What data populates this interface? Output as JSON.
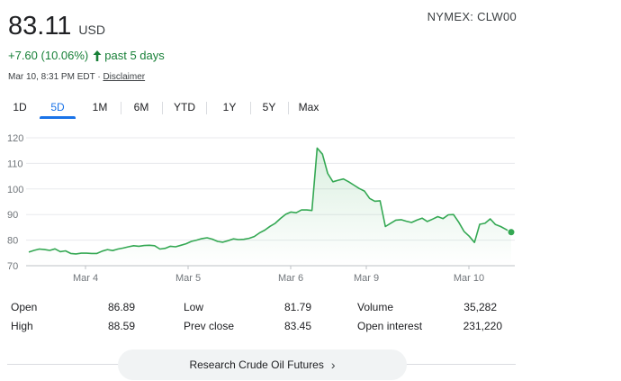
{
  "quote": {
    "price": "83.11",
    "currency": "USD",
    "ticker": "NYMEX: CLW00",
    "change": "+7.60 (10.06%)",
    "change_period": "past 5 days",
    "timestamp": "Mar 10, 8:31 PM EDT",
    "separator": "·",
    "disclaimer": "Disclaimer"
  },
  "colors": {
    "line": "#34a853",
    "positive_text": "#188038",
    "active_tab": "#1a73e8"
  },
  "tabs": [
    "1D",
    "5D",
    "1M",
    "6M",
    "YTD",
    "1Y",
    "5Y",
    "Max"
  ],
  "active_tab": "5D",
  "chart_data": {
    "type": "area",
    "title": "",
    "xlabel": "",
    "ylabel": "",
    "ylim": [
      70,
      120
    ],
    "y_ticks": [
      "120",
      "110",
      "100",
      "90",
      "80",
      "70"
    ],
    "x_tick_labels": [
      "Mar 4",
      "Mar 5",
      "Mar 6",
      "Mar 9",
      "Mar 10"
    ],
    "series": [
      {
        "values": [
          75.3,
          76.0,
          76.5,
          76.3,
          76.0,
          76.6,
          75.5,
          75.8,
          74.8,
          74.6,
          74.9,
          74.9,
          74.8,
          74.8,
          75.7,
          76.3,
          75.9,
          76.5,
          76.9,
          77.4,
          77.8,
          77.6,
          77.9,
          78.0,
          77.8,
          76.5,
          76.8,
          77.6,
          77.4,
          78.0,
          78.6,
          79.5,
          80.0,
          80.6,
          80.9,
          80.4,
          79.5,
          79.2,
          79.8,
          80.5,
          80.2,
          80.3,
          80.7,
          81.4,
          82.8,
          83.9,
          85.4,
          86.6,
          88.5,
          90.1,
          91.0,
          90.7,
          91.8,
          91.8,
          91.6,
          116.0,
          113.6,
          106.1,
          102.8,
          103.4,
          103.9,
          102.8,
          101.5,
          100.2,
          99.2,
          96.3,
          95.2,
          95.4,
          85.3,
          86.6,
          87.8,
          88.0,
          87.4,
          86.9,
          87.8,
          88.6,
          87.3,
          88.2,
          89.2,
          88.4,
          89.9,
          90.0,
          87.0,
          83.4,
          81.5,
          79.1,
          86.2,
          86.6,
          88.3,
          86.1,
          85.3,
          84.2,
          83.0
        ]
      }
    ],
    "last_value": 83.11,
    "grid": "horizontal"
  },
  "stats": [
    {
      "label": "Open",
      "value": "86.89"
    },
    {
      "label": "High",
      "value": "88.59"
    },
    {
      "label": "Low",
      "value": "81.79"
    },
    {
      "label": "Prev close",
      "value": "83.45"
    },
    {
      "label": "Volume",
      "value": "35,282"
    },
    {
      "label": "Open interest",
      "value": "231,220"
    }
  ],
  "cta": {
    "label": "Research Crude Oil Futures"
  },
  "icons": {
    "change_arrow": "arrow-up-icon",
    "cta_chevron": "chevron-right-icon"
  }
}
